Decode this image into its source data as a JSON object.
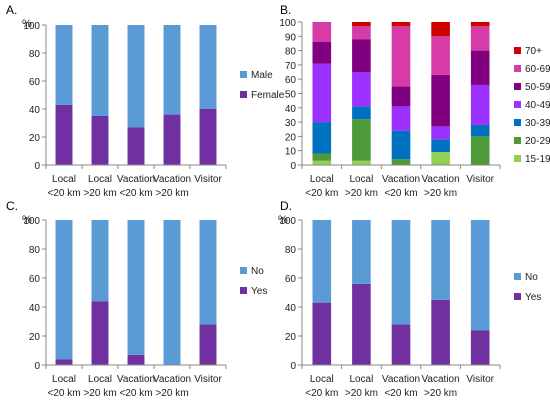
{
  "colors": {
    "Male": "#5b9bd5",
    "Female": "#7030a0",
    "No": "#5b9bd5",
    "Yes": "#7030a0",
    "15-19": "#92d050",
    "20-29": "#4e9a3a",
    "30-39": "#0070c0",
    "40-49": "#9b30ff",
    "50-59": "#800080",
    "60-69": "#d63ba7",
    "70+": "#cc0000"
  },
  "chart_data": [
    {
      "panel": "A.",
      "type": "bar",
      "stacked": true,
      "y_unit": "%",
      "ylim": [
        0,
        100
      ],
      "yticks": [
        0,
        20,
        40,
        60,
        80,
        100
      ],
      "categories": [
        [
          "Local",
          "<20 km"
        ],
        [
          "Local",
          ">20 km"
        ],
        [
          "Vacation",
          "<20 km"
        ],
        [
          "Vacation",
          ">20 km"
        ],
        [
          "Visitor"
        ]
      ],
      "series": [
        {
          "name": "Female",
          "values": [
            43,
            35,
            27,
            36,
            40
          ]
        },
        {
          "name": "Male",
          "values": [
            57,
            65,
            73,
            64,
            60
          ]
        }
      ],
      "legend": [
        "Male",
        "Female"
      ],
      "legend_position": "right",
      "grid": false
    },
    {
      "panel": "B.",
      "type": "bar",
      "stacked": true,
      "y_unit": "",
      "ylim": [
        0,
        100
      ],
      "yticks": [
        0,
        10,
        20,
        30,
        40,
        50,
        60,
        70,
        80,
        90,
        100
      ],
      "categories": [
        [
          "Local",
          "<20 km"
        ],
        [
          "Local",
          ">20 km"
        ],
        [
          "Vacation",
          "<20 km"
        ],
        [
          "Vacation",
          ">20 km"
        ],
        [
          "Visitor"
        ]
      ],
      "series": [
        {
          "name": "15-19",
          "values": [
            3,
            3,
            0,
            9,
            0
          ]
        },
        {
          "name": "20-29",
          "values": [
            5,
            29,
            4,
            0,
            20
          ]
        },
        {
          "name": "30-39",
          "values": [
            22,
            9,
            20,
            9,
            8
          ]
        },
        {
          "name": "40-49",
          "values": [
            41,
            24,
            17,
            9,
            28
          ]
        },
        {
          "name": "50-59",
          "values": [
            15,
            23,
            14,
            36,
            24
          ]
        },
        {
          "name": "60-69",
          "values": [
            14,
            9,
            42,
            27,
            17
          ]
        },
        {
          "name": "70+",
          "values": [
            0,
            3,
            3,
            10,
            3
          ]
        }
      ],
      "legend": [
        "70+",
        "60-69",
        "50-59",
        "40-49",
        "30-39",
        "20-29",
        "15-19"
      ],
      "legend_position": "right",
      "grid": false
    },
    {
      "panel": "C.",
      "type": "bar",
      "stacked": true,
      "y_unit": "%",
      "ylim": [
        0,
        100
      ],
      "yticks": [
        0,
        20,
        40,
        60,
        80,
        100
      ],
      "categories": [
        [
          "Local",
          "<20 km"
        ],
        [
          "Local",
          ">20 km"
        ],
        [
          "Vacation",
          "<20 km"
        ],
        [
          "Vacation",
          ">20 km"
        ],
        [
          "Visitor"
        ]
      ],
      "series": [
        {
          "name": "Yes",
          "values": [
            4,
            44,
            7,
            0,
            28
          ]
        },
        {
          "name": "No",
          "values": [
            96,
            56,
            93,
            100,
            72
          ]
        }
      ],
      "legend": [
        "No",
        "Yes"
      ],
      "legend_position": "right",
      "grid": false
    },
    {
      "panel": "D.",
      "type": "bar",
      "stacked": true,
      "y_unit": "%",
      "ylim": [
        0,
        100
      ],
      "yticks": [
        0,
        20,
        40,
        60,
        80,
        100
      ],
      "categories": [
        [
          "Local",
          "<20 km"
        ],
        [
          "Local",
          ">20 km"
        ],
        [
          "Vacation",
          "<20 km"
        ],
        [
          "Vacation",
          ">20 km"
        ],
        [
          "Visitor"
        ]
      ],
      "series": [
        {
          "name": "Yes",
          "values": [
            43,
            56,
            28,
            45,
            24
          ]
        },
        {
          "name": "No",
          "values": [
            57,
            44,
            72,
            55,
            76
          ]
        }
      ],
      "legend": [
        "No",
        "Yes"
      ],
      "legend_position": "right",
      "grid": false
    }
  ]
}
